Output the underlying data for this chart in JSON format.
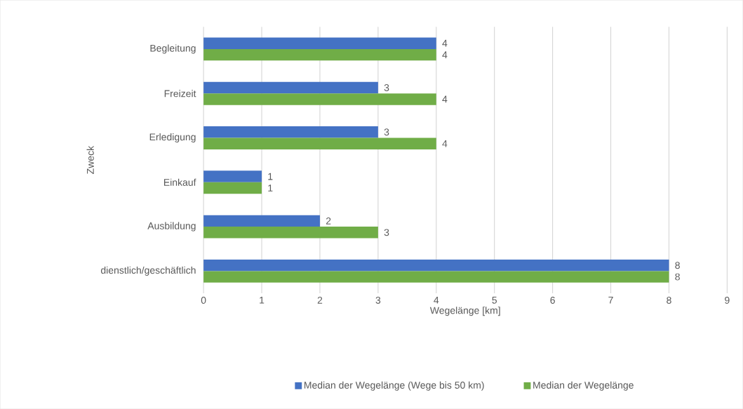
{
  "chart_data": {
    "type": "bar",
    "orientation": "horizontal",
    "categories": [
      "Begleitung",
      "Freizeit",
      "Erledigung",
      "Einkauf",
      "Ausbildung",
      "dienstlich/geschäftlich"
    ],
    "series": [
      {
        "name": "Median der Wegelänge (Wege bis 50 km)",
        "color": "#4472c4",
        "values": [
          4,
          3,
          3,
          1,
          2,
          8
        ]
      },
      {
        "name": "Median der Wegelänge",
        "color": "#70ad47",
        "values": [
          4,
          4,
          4,
          1,
          3,
          8
        ]
      }
    ],
    "xlim": [
      0,
      9
    ],
    "xticks": [
      0,
      1,
      2,
      3,
      4,
      5,
      6,
      7,
      8,
      9
    ],
    "xlabel": "Wegelänge [km]",
    "ylabel": "Zweck",
    "grid": "x",
    "legend": "bottom",
    "data_labels": true
  }
}
